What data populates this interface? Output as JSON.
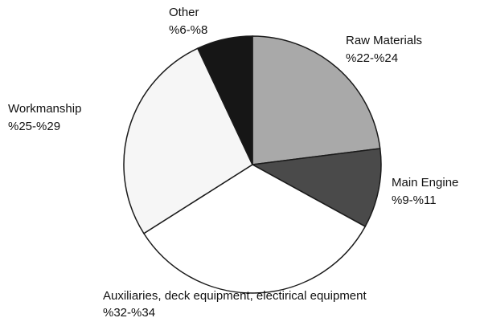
{
  "chart_data": {
    "type": "pie",
    "title": "",
    "legend": "none",
    "start_angle_deg": 0,
    "direction": "clockwise",
    "slices": [
      {
        "label": "Raw Materials",
        "range": "%22-%24",
        "value": 23,
        "color": "#a9a9a9"
      },
      {
        "label": "Main Engine",
        "range": "%9-%11",
        "value": 10,
        "color": "#4a4a4a"
      },
      {
        "label": "Auxiliaries, deck equipment, electirical equipment",
        "range": "%32-%34",
        "value": 33,
        "color": "#ffffff"
      },
      {
        "label": "Workmanship",
        "range": "%25-%29",
        "value": 27,
        "color": "#f6f6f6"
      },
      {
        "label": "Other",
        "range": "%6-%8",
        "value": 7,
        "color": "#161616"
      }
    ],
    "outline_color": "#1a1a1a"
  }
}
